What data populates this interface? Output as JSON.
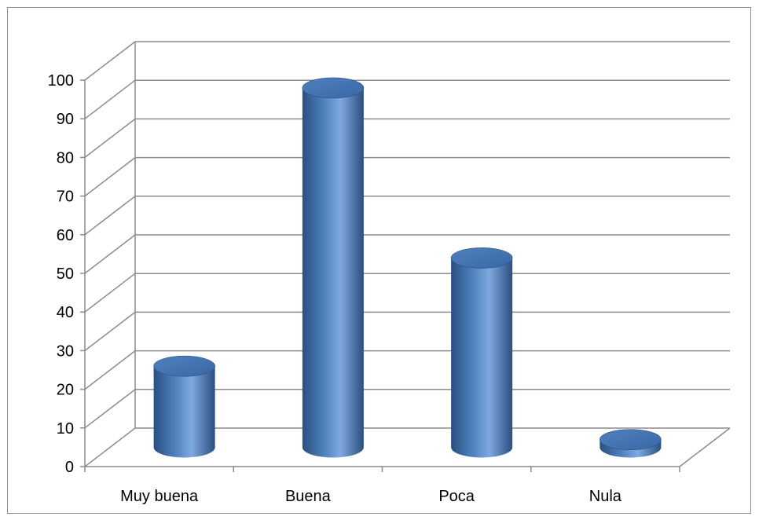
{
  "chart_data": {
    "type": "bar",
    "style": "3d-cylinder",
    "categories": [
      "Muy buena",
      "Buena",
      "Poca",
      "Nula"
    ],
    "values": [
      21,
      93,
      49,
      2
    ],
    "title": "",
    "xlabel": "",
    "ylabel": "",
    "ylim": [
      0,
      100
    ],
    "yticks": [
      0,
      10,
      20,
      30,
      40,
      50,
      60,
      70,
      80,
      90,
      100
    ],
    "grid": true,
    "legend": "none",
    "colors": {
      "bar": "#4f81bd",
      "bar_dark": "#2a4f80",
      "bar_light": "#7fa9e0",
      "top": "#3a67a6",
      "grid": "#8c8c8c"
    }
  }
}
